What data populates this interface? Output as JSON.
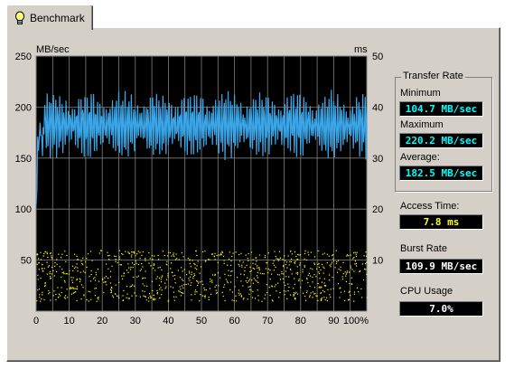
{
  "tab": {
    "label": "Benchmark",
    "icon": "lightbulb-icon"
  },
  "chart_data": {
    "type": "line",
    "left_axis_unit": "MB/sec",
    "right_axis_unit": "ms",
    "left_ticks": [
      50,
      100,
      150,
      200,
      250
    ],
    "right_ticks": [
      10,
      20,
      30,
      40,
      50
    ],
    "x_ticks": [
      "0",
      "10",
      "20",
      "30",
      "40",
      "50",
      "60",
      "70",
      "80",
      "90",
      "100%"
    ],
    "xlim": [
      0,
      100
    ],
    "ylim_left": [
      0,
      250
    ],
    "ylim_right": [
      0,
      50
    ],
    "grid": true,
    "series": [
      {
        "color": "#3aa6e8",
        "min": 104.7,
        "max": 220.2,
        "average": 182.5
      },
      {
        "color": "#ffff00",
        "style": "dots",
        "range_ms": [
          2,
          12
        ]
      }
    ]
  },
  "transfer_rate": {
    "title": "Transfer Rate",
    "minimum_label": "Minimum",
    "minimum_value": "104.7 MB/sec",
    "maximum_label": "Maximum",
    "maximum_value": "220.2 MB/sec",
    "average_label": "Average:",
    "average_value": "182.5 MB/sec"
  },
  "access_time": {
    "label": "Access Time:",
    "value": "7.8 ms"
  },
  "burst_rate": {
    "label": "Burst Rate",
    "value": "109.9 MB/sec"
  },
  "cpu_usage": {
    "label": "CPU Usage",
    "value": "7.0%"
  },
  "colors": {
    "cyan": "#00ffff",
    "yellow": "#ffff00",
    "white": "#ffffff",
    "panel": "#d4d0c8"
  }
}
